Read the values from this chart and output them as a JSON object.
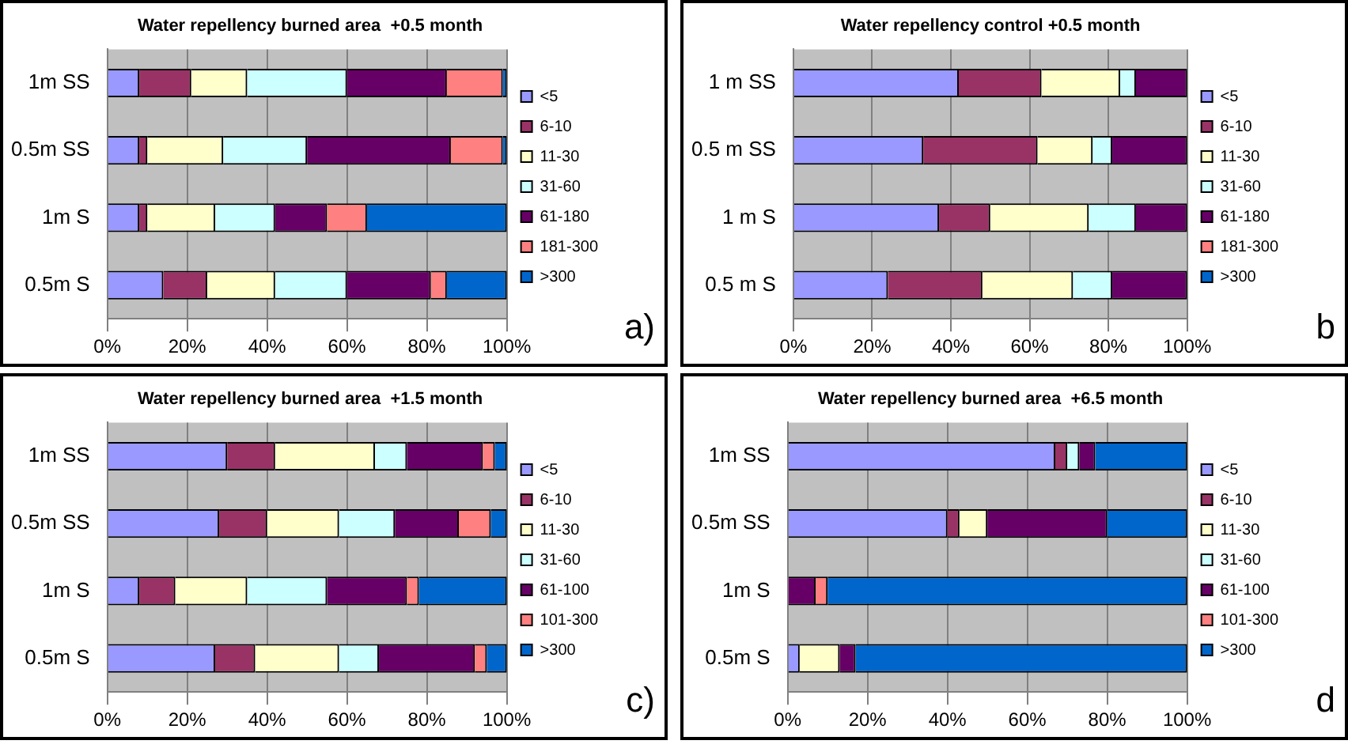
{
  "chart_data": [
    {
      "type": "bar",
      "orientation": "horizontal",
      "stacked": true,
      "title": "Water repellency burned area  +0.5 month",
      "categories": [
        "1m SS",
        "0.5m SS",
        "1m S",
        "0.5m S"
      ],
      "xlim": [
        0,
        100
      ],
      "xticks": [
        {
          "value": 0,
          "label": "0%"
        },
        {
          "value": 20,
          "label": "20%"
        },
        {
          "value": 40,
          "label": "40%"
        },
        {
          "value": 60,
          "label": "60%"
        },
        {
          "value": 80,
          "label": "80%"
        },
        {
          "value": 100,
          "label": "100%"
        }
      ],
      "grid": "x",
      "legend": "right",
      "annotations": [
        "a)"
      ],
      "series": [
        {
          "name": "<5",
          "color": "#9999ff",
          "values": [
            8,
            8,
            8,
            14
          ]
        },
        {
          "name": "6-10",
          "color": "#993366",
          "values": [
            13,
            2,
            2,
            11
          ]
        },
        {
          "name": "11-30",
          "color": "#ffffcc",
          "values": [
            14,
            19,
            17,
            17
          ]
        },
        {
          "name": "31-60",
          "color": "#ccffff",
          "values": [
            25,
            21,
            15,
            18
          ]
        },
        {
          "name": "61-180",
          "color": "#660066",
          "values": [
            25,
            36,
            13,
            21
          ]
        },
        {
          "name": "181-300",
          "color": "#ff8080",
          "values": [
            14,
            13,
            10,
            4
          ]
        },
        {
          "name": ">300",
          "color": "#0066cc",
          "values": [
            1,
            1,
            35,
            15
          ]
        }
      ]
    },
    {
      "type": "bar",
      "orientation": "horizontal",
      "stacked": true,
      "title": "Water repellency control +0.5 month",
      "categories": [
        "1 m SS",
        "0.5 m SS",
        "1 m S",
        "0.5 m S"
      ],
      "xlim": [
        0,
        100
      ],
      "xticks": [
        {
          "value": 0,
          "label": "0%"
        },
        {
          "value": 20,
          "label": "20%"
        },
        {
          "value": 40,
          "label": "40%"
        },
        {
          "value": 60,
          "label": "60%"
        },
        {
          "value": 80,
          "label": "80%"
        },
        {
          "value": 100,
          "label": "100%"
        }
      ],
      "grid": "x",
      "legend": "right",
      "annotations": [
        "b"
      ],
      "series": [
        {
          "name": "<5",
          "color": "#9999ff",
          "values": [
            42,
            33,
            37,
            24
          ]
        },
        {
          "name": "6-10",
          "color": "#993366",
          "values": [
            21,
            29,
            13,
            24
          ]
        },
        {
          "name": "11-30",
          "color": "#ffffcc",
          "values": [
            20,
            14,
            25,
            23
          ]
        },
        {
          "name": "31-60",
          "color": "#ccffff",
          "values": [
            4,
            5,
            12,
            10
          ]
        },
        {
          "name": "61-180",
          "color": "#660066",
          "values": [
            13,
            19,
            13,
            19
          ]
        },
        {
          "name": "181-300",
          "color": "#ff8080",
          "values": [
            0,
            0,
            0,
            0
          ]
        },
        {
          "name": ">300",
          "color": "#0066cc",
          "values": [
            0,
            0,
            0,
            0
          ]
        }
      ]
    },
    {
      "type": "bar",
      "orientation": "horizontal",
      "stacked": true,
      "title": "Water repellency burned area  +1.5 month",
      "categories": [
        "1m SS",
        "0.5m SS",
        "1m S",
        "0.5m S"
      ],
      "xlim": [
        0,
        100
      ],
      "xticks": [
        {
          "value": 0,
          "label": "0%"
        },
        {
          "value": 20,
          "label": "20%"
        },
        {
          "value": 40,
          "label": "40%"
        },
        {
          "value": 60,
          "label": "60%"
        },
        {
          "value": 80,
          "label": "80%"
        },
        {
          "value": 100,
          "label": "100%"
        }
      ],
      "grid": "x",
      "legend": "right",
      "annotations": [
        "c)"
      ],
      "series": [
        {
          "name": "<5",
          "color": "#9999ff",
          "values": [
            30,
            28,
            8,
            27
          ]
        },
        {
          "name": "6-10",
          "color": "#993366",
          "values": [
            12,
            12,
            9,
            10
          ]
        },
        {
          "name": "11-30",
          "color": "#ffffcc",
          "values": [
            25,
            18,
            18,
            21
          ]
        },
        {
          "name": "31-60",
          "color": "#ccffff",
          "values": [
            8,
            14,
            20,
            10
          ]
        },
        {
          "name": "61-100",
          "color": "#660066",
          "values": [
            19,
            16,
            20,
            24
          ]
        },
        {
          "name": "101-300",
          "color": "#ff8080",
          "values": [
            3,
            8,
            3,
            3
          ]
        },
        {
          "name": ">300",
          "color": "#0066cc",
          "values": [
            3,
            4,
            22,
            5
          ]
        }
      ]
    },
    {
      "type": "bar",
      "orientation": "horizontal",
      "stacked": true,
      "title": "Water repellency burned area  +6.5 month",
      "categories": [
        "1m SS",
        "0.5m SS",
        "1m S",
        "0.5m S"
      ],
      "xlim": [
        0,
        100
      ],
      "xticks": [
        {
          "value": 0,
          "label": "0%"
        },
        {
          "value": 20,
          "label": "20%"
        },
        {
          "value": 40,
          "label": "40%"
        },
        {
          "value": 60,
          "label": "60%"
        },
        {
          "value": 80,
          "label": "80%"
        },
        {
          "value": 100,
          "label": "100%"
        }
      ],
      "grid": "x",
      "legend": "right",
      "annotations": [
        "d"
      ],
      "series": [
        {
          "name": "<5",
          "color": "#9999ff",
          "values": [
            67,
            40,
            0,
            3
          ]
        },
        {
          "name": "6-10",
          "color": "#993366",
          "values": [
            3,
            3,
            0,
            0
          ]
        },
        {
          "name": "11-30",
          "color": "#ffffcc",
          "values": [
            0,
            7,
            0,
            10
          ]
        },
        {
          "name": "31-60",
          "color": "#ccffff",
          "values": [
            3,
            0,
            0,
            0
          ]
        },
        {
          "name": "61-100",
          "color": "#660066",
          "values": [
            4,
            30,
            7,
            4
          ]
        },
        {
          "name": "101-300",
          "color": "#ff8080",
          "values": [
            0,
            0,
            3,
            0
          ]
        },
        {
          "name": ">300",
          "color": "#0066cc",
          "values": [
            23,
            20,
            90,
            83
          ]
        }
      ]
    }
  ]
}
